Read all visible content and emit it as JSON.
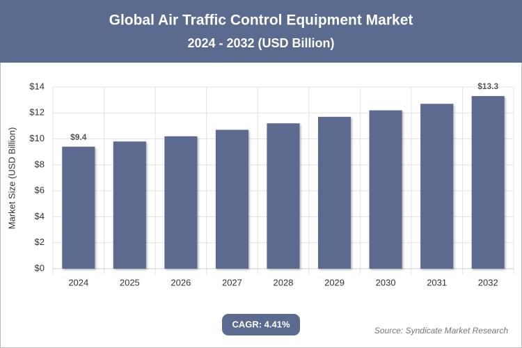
{
  "chart_data": {
    "type": "bar",
    "title": "Global Air Traffic Control Equipment Market",
    "subtitle": "2024 - 2032 (USD Billion)",
    "y_label": "Market Size (USD Billion)",
    "categories": [
      "2024",
      "2025",
      "2026",
      "2027",
      "2028",
      "2029",
      "2030",
      "2031",
      "2032"
    ],
    "values": [
      9.4,
      9.8,
      10.2,
      10.7,
      11.2,
      11.7,
      12.2,
      12.7,
      13.3
    ],
    "value_labels": [
      "$9.4",
      null,
      null,
      null,
      null,
      null,
      null,
      null,
      "$13.3"
    ],
    "color": "#5b6a8f",
    "ylim": [
      0,
      14
    ],
    "yticks": [
      {
        "value": 0,
        "label": "$0"
      },
      {
        "value": 2,
        "label": "$2"
      },
      {
        "value": 4,
        "label": "$4"
      },
      {
        "value": 6,
        "label": "$6"
      },
      {
        "value": 8,
        "label": "$8"
      },
      {
        "value": 10,
        "label": "$10"
      },
      {
        "value": 12,
        "label": "$12"
      },
      {
        "value": 14,
        "label": "$14"
      }
    ],
    "grid": true,
    "cagr": "CAGR: 4.41%",
    "source": "Source: Syndicate Market Research"
  }
}
